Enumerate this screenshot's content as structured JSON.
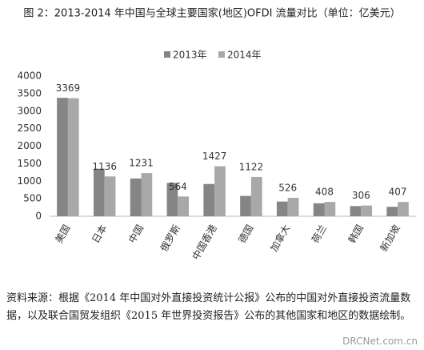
{
  "chart_data": {
    "type": "bar",
    "title": "图 2：2013-2014 年中国与全球主要国家(地区)OFDI 流量对比（单位：亿美元）",
    "categories": [
      "美国",
      "日本",
      "中国",
      "俄罗斯",
      "中国香港",
      "德国",
      "加拿大",
      "荷兰",
      "韩国",
      "新加坡"
    ],
    "series": [
      {
        "name": "2013年",
        "color": "#858585",
        "values": [
          3380,
          1357,
          1078,
          950,
          920,
          580,
          420,
          370,
          290,
          270
        ]
      },
      {
        "name": "2014年",
        "color": "#a8a8a8",
        "values": [
          3369,
          1136,
          1231,
          564,
          1427,
          1122,
          526,
          408,
          306,
          407
        ]
      }
    ],
    "data_labels_series": 1,
    "ylim": [
      0,
      4000
    ],
    "yticks": [
      0,
      500,
      1000,
      1500,
      2000,
      2500,
      3000,
      3500,
      4000
    ],
    "grid": false,
    "legend": "top"
  },
  "source": "资料来源：根据《2014 年中国对外直接投资统计公报》公布的中国对外直接投资流量数据，以及联合国贸发组织《2015 年世界投资报告》公布的其他国家和地区的数据绘制。",
  "watermark": "DRCNet.com.cn"
}
